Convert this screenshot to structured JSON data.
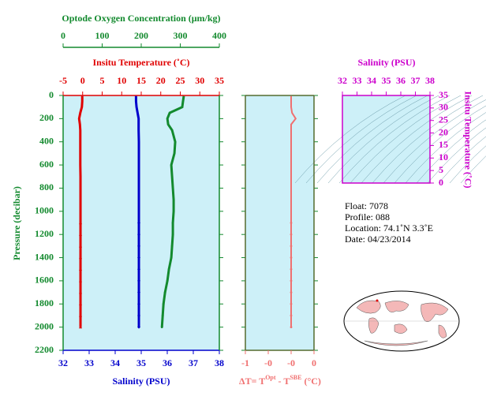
{
  "chart_data": [
    {
      "type": "profile",
      "ylabel": "Pressure (decibar)",
      "ylim": [
        0,
        2200
      ],
      "yticks": [
        0,
        200,
        400,
        600,
        800,
        1000,
        1200,
        1400,
        1600,
        1800,
        2000,
        2200
      ],
      "pressure": [
        5,
        50,
        100,
        150,
        200,
        250,
        300,
        400,
        500,
        600,
        700,
        800,
        900,
        1000,
        1100,
        1200,
        1300,
        1400,
        1500,
        1600,
        1700,
        1800,
        1900,
        2000
      ],
      "series": [
        {
          "name": "Optode Oxygen Concentration (μm/kg)",
          "color": "#138a2e",
          "marker": "dot",
          "xlim": [
            0,
            400
          ],
          "xticks": [
            0,
            100,
            200,
            300,
            400
          ],
          "values": [
            309,
            307,
            305,
            273,
            267,
            269,
            279,
            287,
            285,
            277,
            279,
            281,
            283,
            283,
            281,
            281,
            279,
            277,
            271,
            267,
            261,
            257,
            255,
            253
          ]
        },
        {
          "name": "Insitu Temperature (˚C)",
          "color": "#e00000",
          "marker": "triangle",
          "xlim": [
            -5,
            35
          ],
          "xticks": [
            -5,
            0,
            5,
            10,
            15,
            20,
            25,
            30,
            35
          ],
          "values": [
            -0.1,
            -0.1,
            -0.2,
            -0.6,
            -0.9,
            -0.7,
            -0.6,
            -0.6,
            -0.6,
            -0.6,
            -0.55,
            -0.55,
            -0.55,
            -0.55,
            -0.55,
            -0.55,
            -0.55,
            -0.55,
            -0.55,
            -0.55,
            -0.55,
            -0.55,
            -0.55,
            -0.55
          ]
        },
        {
          "name": "Salinity (PSU)",
          "color": "#0000cc",
          "marker": "diamond",
          "xlim": [
            32,
            38
          ],
          "xticks": [
            32,
            33,
            34,
            35,
            36,
            37,
            38
          ],
          "values": [
            34.8,
            34.8,
            34.82,
            34.86,
            34.9,
            34.9,
            34.9,
            34.91,
            34.91,
            34.91,
            34.91,
            34.91,
            34.91,
            34.91,
            34.91,
            34.91,
            34.91,
            34.91,
            34.91,
            34.91,
            34.91,
            34.91,
            34.91,
            34.91
          ]
        }
      ]
    },
    {
      "type": "profile",
      "xlabel": [
        "ΔT= T",
        "Opt",
        " - T",
        "SBE",
        " (°C)"
      ],
      "color": "#f07070",
      "xlim": [
        -1,
        0.5
      ],
      "xticks": [
        {
          "value": -1,
          "label": "-1"
        },
        {
          "value": -0.5,
          "label": "-0"
        },
        {
          "value": 0,
          "label": "-0"
        },
        {
          "value": 0.5,
          "label": "0"
        }
      ],
      "values": [
        0.0,
        0.0,
        0.0,
        0.02,
        0.1,
        0.0,
        0.0,
        0.0,
        0.0,
        0.0,
        0.0,
        0.0,
        0.0,
        0.0,
        0.0,
        0.0,
        0.0,
        0.0,
        0.0,
        0.0,
        0.0,
        0.0,
        0.0,
        0.0
      ]
    },
    {
      "type": "ts",
      "xlabel": "Salinity (PSU)",
      "ylabel": "Insitu Temperature (˚C)",
      "color": "#cc00cc",
      "xlim": [
        32,
        38
      ],
      "xticks": [
        32,
        33,
        34,
        35,
        36,
        37,
        38
      ],
      "ylim": [
        0,
        35
      ],
      "yticks": [
        0,
        5,
        10,
        15,
        20,
        25,
        30,
        35
      ]
    }
  ],
  "info": {
    "float": "Float:  7078",
    "profile": "Profile:  088",
    "location": "Location:  74.1˚N   3.3˚E",
    "date": "Date:  04/23/2014"
  }
}
